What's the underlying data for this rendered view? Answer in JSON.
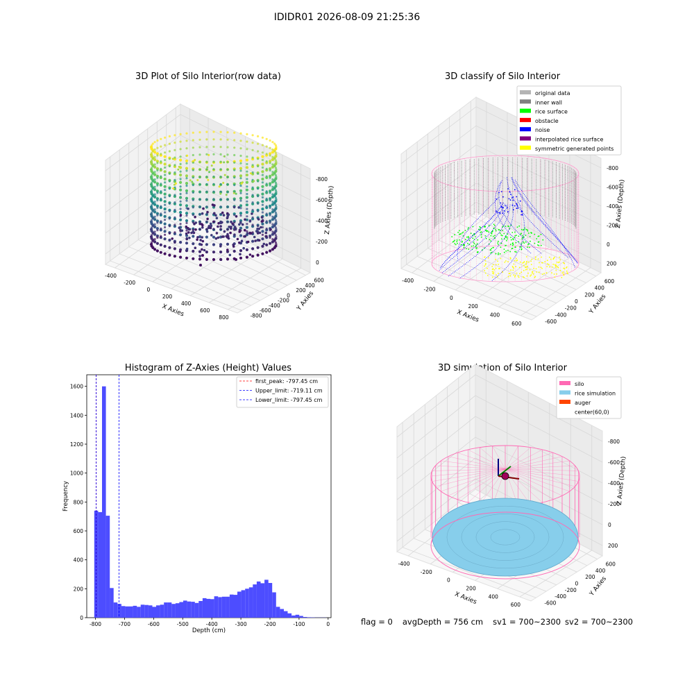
{
  "figure": {
    "suptitle": "IDIDR01 2026-08-09 21:25:36"
  },
  "status_bar": {
    "flag": "flag = 0",
    "avg_depth": "avgDepth = 756 cm",
    "sv1": "sv1 = 700~2300",
    "sv2": "sv2 = 700~2300"
  },
  "panels": {
    "raw": {
      "title": "3D Plot of Silo Interior(row data)",
      "xlabel": "X Axies",
      "ylabel": "Y Axies",
      "zlabel": "Z Axies (Depth)",
      "xticks": [
        "-400",
        "-200",
        "0",
        "200",
        "400",
        "600",
        "800"
      ],
      "yticks": [
        "-800",
        "-600",
        "-400",
        "-200",
        "0",
        "200",
        "400",
        "600"
      ],
      "zticks": [
        "0",
        "-200",
        "-400",
        "-600",
        "-800"
      ]
    },
    "classify": {
      "title": "3D classify of Silo Interior",
      "xlabel": "X Axies",
      "ylabel": "Y Axies",
      "zlabel": "Z Axies (Depth)",
      "xticks": [
        "-400",
        "-200",
        "0",
        "200",
        "400",
        "600"
      ],
      "yticks": [
        "-600",
        "-400",
        "-200",
        "0",
        "200",
        "400",
        "600"
      ],
      "zticks": [
        "200",
        "0",
        "-200",
        "-400",
        "-600",
        "-800"
      ],
      "legend": [
        {
          "label": "original data",
          "color": "#b4b4b4"
        },
        {
          "label": "inner wall",
          "color": "#808080"
        },
        {
          "label": "rice surface",
          "color": "#00ff00"
        },
        {
          "label": "obstacle",
          "color": "#ff0000"
        },
        {
          "label": "noise",
          "color": "#0000ff"
        },
        {
          "label": "interpolated rice surface",
          "color": "#800080"
        },
        {
          "label": "symmetric generated points",
          "color": "#ffff00"
        }
      ]
    },
    "histogram": {
      "title": "Histogram of Z-Axies (Height) Values",
      "xlabel": "Depth (cm)",
      "ylabel": "Frequency",
      "xticks": [
        "-800",
        "-700",
        "-600",
        "-500",
        "-400",
        "-300",
        "-200",
        "-100",
        "0"
      ],
      "yticks": [
        "0",
        "200",
        "400",
        "600",
        "800",
        "1000",
        "1200",
        "1400",
        "1600"
      ],
      "legend": [
        {
          "label": "first_peak: -797.45 cm",
          "color": "#ff0000"
        },
        {
          "label": "Upper_limit: -719.11 cm",
          "color": "#0000ff"
        },
        {
          "label": "Lower_limit: -797.45 cm",
          "color": "#0000ff"
        }
      ]
    },
    "simulation": {
      "title": "3D simulation of Silo Interior",
      "xlabel": "X Axies",
      "ylabel": "Y Axies",
      "zlabel": "Z Axies (Depth)",
      "xticks": [
        "-400",
        "-200",
        "0",
        "200",
        "400",
        "600"
      ],
      "yticks": [
        "-600",
        "-400",
        "-200",
        "0",
        "200",
        "400",
        "600"
      ],
      "zticks": [
        "200",
        "0",
        "-200",
        "-400",
        "-600",
        "-800"
      ],
      "legend": [
        {
          "label": "silo",
          "color": "#ff69b4"
        },
        {
          "label": "rice simulation",
          "color": "#87ceeb"
        },
        {
          "label": "auger",
          "color": "#ff4500"
        },
        {
          "label": "center(60,0)",
          "color": "#ffffff"
        }
      ]
    }
  },
  "chart_data": [
    {
      "type": "scatter",
      "title": "3D Plot of Silo Interior(row data)",
      "xlabel": "X Axies",
      "ylabel": "Y Axies",
      "zlabel": "Z Axies (Depth)",
      "xlim": [
        -500,
        800
      ],
      "ylim": [
        -900,
        700
      ],
      "zlim": [
        -950,
        0
      ],
      "colormap": "viridis",
      "silo_radius": 560,
      "z_range": [
        -850,
        -50
      ],
      "grid": true
    },
    {
      "type": "scatter",
      "title": "3D classify of Silo Interior",
      "xlabel": "X Axies",
      "ylabel": "Y Axies",
      "zlabel": "Z Axies (Depth)",
      "xlim": [
        -500,
        700
      ],
      "ylim": [
        -650,
        650
      ],
      "zlim": [
        -850,
        250
      ],
      "series": [
        {
          "name": "original data",
          "color": "#b4b4b4"
        },
        {
          "name": "inner wall",
          "color": "#808080"
        },
        {
          "name": "rice surface",
          "color": "#00ff00"
        },
        {
          "name": "obstacle",
          "color": "#ff0000"
        },
        {
          "name": "noise",
          "color": "#0000ff"
        },
        {
          "name": "interpolated rice surface",
          "color": "#800080"
        },
        {
          "name": "symmetric generated points",
          "color": "#ffff00"
        }
      ],
      "legend_position": "top-right",
      "grid": true
    },
    {
      "type": "bar",
      "title": "Histogram of Z-Axies (Height) Values",
      "xlabel": "Depth (cm)",
      "ylabel": "Frequency",
      "xlim": [
        -830,
        10
      ],
      "ylim": [
        0,
        1680
      ],
      "bin_width": 13.3,
      "x": [
        -797.5,
        -784.2,
        -770.9,
        -757.6,
        -744.3,
        -731.0,
        -717.7,
        -704.4,
        -691.1,
        -677.8,
        -664.5,
        -651.2,
        -637.9,
        -624.6,
        -611.3,
        -598.0,
        -584.7,
        -571.4,
        -558.1,
        -544.8,
        -531.5,
        -518.2,
        -504.9,
        -491.6,
        -478.3,
        -465.0,
        -451.7,
        -438.4,
        -425.1,
        -411.8,
        -398.5,
        -385.2,
        -371.9,
        -358.6,
        -345.3,
        -332.0,
        -318.7,
        -305.4,
        -292.1,
        -278.8,
        -265.5,
        -252.2,
        -238.9,
        -225.6,
        -212.3,
        -199.0,
        -185.7,
        -172.4,
        -159.1,
        -145.8,
        -132.5,
        -119.2,
        -105.9,
        -92.6,
        -79.3,
        -66.0,
        -52.7,
        -39.4,
        -26.1,
        -12.8
      ],
      "values": [
        740,
        730,
        1600,
        705,
        205,
        105,
        95,
        80,
        78,
        78,
        82,
        75,
        90,
        88,
        85,
        75,
        85,
        90,
        105,
        105,
        95,
        100,
        108,
        118,
        112,
        110,
        102,
        115,
        135,
        130,
        128,
        148,
        142,
        145,
        145,
        160,
        158,
        180,
        190,
        200,
        210,
        230,
        250,
        238,
        262,
        240,
        175,
        75,
        60,
        45,
        30,
        15,
        20,
        12,
        5,
        3,
        2,
        1,
        1,
        1
      ],
      "vlines": [
        {
          "name": "first_peak: -797.45 cm",
          "x": -797.45,
          "color": "#ff0000"
        },
        {
          "name": "Upper_limit: -719.11 cm",
          "x": -719.11,
          "color": "#0000ff"
        },
        {
          "name": "Lower_limit: -797.45 cm",
          "x": -797.45,
          "color": "#0000ff"
        }
      ],
      "bar_color": "#4d4dff",
      "legend_position": "top-right"
    },
    {
      "type": "area",
      "title": "3D simulation of Silo Interior",
      "xlabel": "X Axies",
      "ylabel": "Y Axies",
      "zlabel": "Z Axies (Depth)",
      "xlim": [
        -500,
        700
      ],
      "ylim": [
        -650,
        650
      ],
      "zlim": [
        -850,
        350
      ],
      "silo_radius": 540,
      "silo_top": 50,
      "rice_level": -756,
      "series": [
        {
          "name": "silo",
          "color": "#ff69b4"
        },
        {
          "name": "rice simulation",
          "color": "#87ceeb"
        },
        {
          "name": "auger",
          "color": "#ff4500"
        },
        {
          "name": "center(60,0)",
          "color": "#ffffff"
        }
      ],
      "legend_position": "top-right",
      "grid": true
    }
  ]
}
